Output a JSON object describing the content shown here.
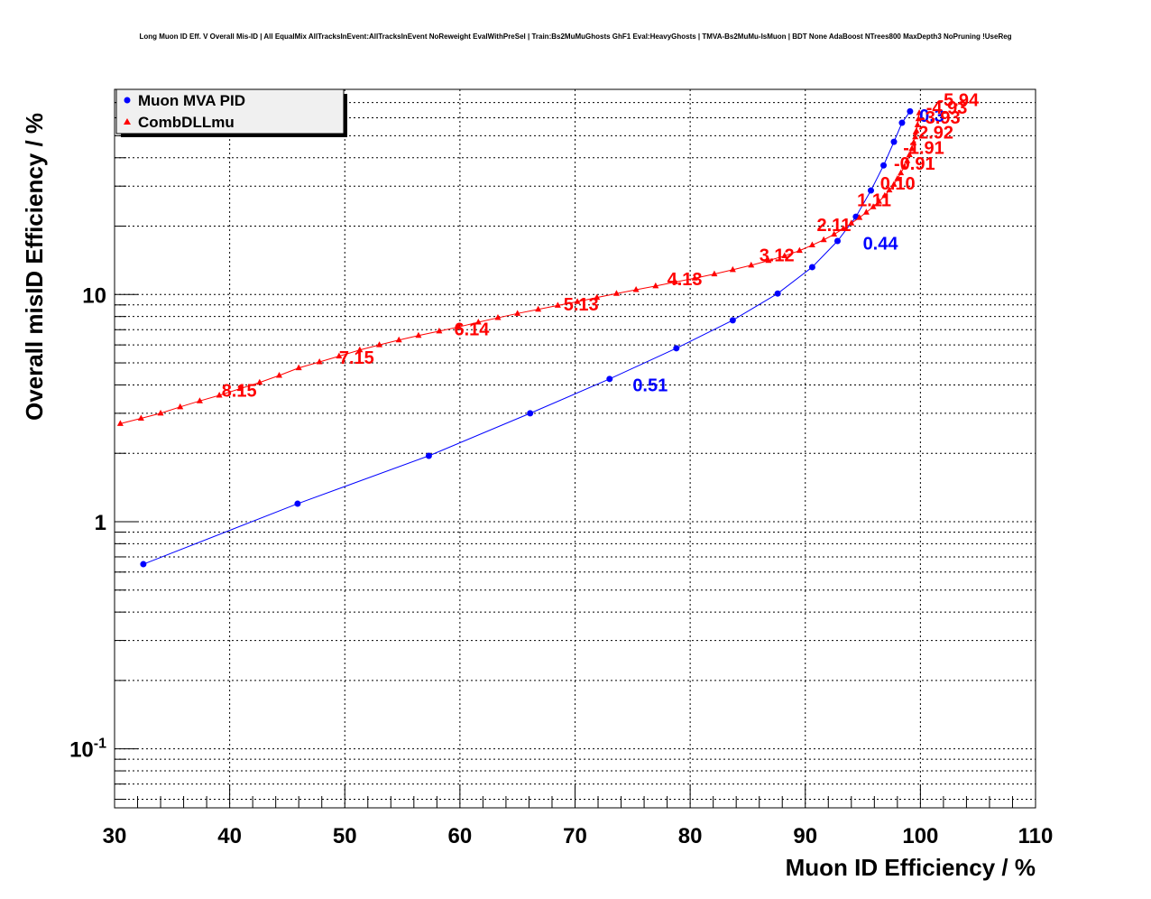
{
  "title": "Long Muon ID Eff. V Overall Mis-ID | All EqualMix AllTracksInEvent:AllTracksInEvent NoReweight EvalWithPreSel | Train:Bs2MuMuGhosts GhF1 Eval:HeavyGhosts | TMVA-Bs2MuMu-IsMuon | BDT None AdaBoost NTrees800 MaxDepth3 NoPruning !UseReg",
  "chart_data": {
    "type": "line",
    "xlabel": "Muon ID Efficiency / %",
    "ylabel": "Overall misID Efficiency / %",
    "xlim": [
      30,
      110
    ],
    "ylim": [
      0.055,
      80
    ],
    "yscale": "log",
    "grid": true,
    "legend_position": "top-left",
    "x_ticks": [
      "30",
      "40",
      "50",
      "60",
      "70",
      "80",
      "90",
      "100",
      "110"
    ],
    "y_ticks": [
      {
        "value": 0.1,
        "base": "10",
        "exp": "-1"
      },
      {
        "value": 1,
        "base": "1",
        "exp": ""
      },
      {
        "value": 10,
        "base": "10",
        "exp": ""
      }
    ],
    "series": [
      {
        "name": "Muon MVA PID",
        "color": "#0000ff",
        "marker": "circle",
        "points": [
          [
            32.5,
            0.65
          ],
          [
            45.9,
            1.2
          ],
          [
            57.3,
            1.95
          ],
          [
            66.1,
            3.0
          ],
          [
            73.0,
            4.25
          ],
          [
            78.8,
            5.8
          ],
          [
            83.7,
            7.7
          ],
          [
            87.6,
            10.1
          ],
          [
            90.6,
            13.2
          ],
          [
            92.8,
            17.2
          ],
          [
            94.4,
            22.0
          ],
          [
            95.7,
            28.7
          ],
          [
            96.8,
            37.0
          ],
          [
            97.7,
            47.0
          ],
          [
            98.4,
            57.0
          ],
          [
            99.1,
            64.0
          ]
        ],
        "cut_labels": [
          {
            "text": "0.51",
            "x": 75.0,
            "y": 3.75
          },
          {
            "text": "0.44",
            "x": 95.0,
            "y": 15.8
          },
          {
            "text": "0.3",
            "x": 99.9,
            "y": 57.5
          }
        ]
      },
      {
        "name": "CombDLLmu",
        "color": "#ff0000",
        "marker": "triangle",
        "points": [
          [
            30.5,
            2.7
          ],
          [
            32.3,
            2.85
          ],
          [
            34.0,
            3.0
          ],
          [
            35.7,
            3.2
          ],
          [
            37.4,
            3.4
          ],
          [
            39.1,
            3.6
          ],
          [
            40.9,
            3.85
          ],
          [
            42.6,
            4.1
          ],
          [
            44.3,
            4.4
          ],
          [
            46.0,
            4.75
          ],
          [
            47.8,
            5.05
          ],
          [
            49.5,
            5.35
          ],
          [
            51.3,
            5.7
          ],
          [
            53.0,
            6.0
          ],
          [
            54.7,
            6.3
          ],
          [
            56.4,
            6.6
          ],
          [
            58.2,
            6.9
          ],
          [
            59.9,
            7.2
          ],
          [
            61.6,
            7.55
          ],
          [
            63.3,
            7.9
          ],
          [
            65.0,
            8.25
          ],
          [
            66.8,
            8.6
          ],
          [
            68.5,
            8.95
          ],
          [
            70.2,
            9.3
          ],
          [
            71.9,
            9.7
          ],
          [
            73.6,
            10.1
          ],
          [
            75.3,
            10.5
          ],
          [
            77.0,
            10.9
          ],
          [
            78.7,
            11.35
          ],
          [
            80.4,
            11.8
          ],
          [
            82.1,
            12.3
          ],
          [
            83.7,
            12.85
          ],
          [
            85.3,
            13.45
          ],
          [
            86.8,
            14.1
          ],
          [
            88.2,
            14.8
          ],
          [
            89.5,
            15.6
          ],
          [
            90.6,
            16.5
          ],
          [
            91.6,
            17.4
          ],
          [
            92.5,
            18.4
          ],
          [
            93.3,
            19.5
          ],
          [
            94.0,
            20.6
          ],
          [
            94.7,
            21.8
          ],
          [
            95.3,
            23.0
          ],
          [
            95.9,
            24.3
          ],
          [
            96.4,
            25.7
          ],
          [
            96.9,
            27.2
          ],
          [
            97.3,
            28.8
          ],
          [
            97.7,
            30.5
          ],
          [
            98.0,
            32.3
          ],
          [
            98.3,
            34.3
          ],
          [
            98.6,
            36.5
          ],
          [
            98.85,
            38.8
          ],
          [
            99.05,
            41.2
          ],
          [
            99.25,
            43.8
          ],
          [
            99.4,
            46.5
          ],
          [
            99.55,
            49.4
          ],
          [
            99.65,
            52.5
          ],
          [
            99.75,
            55.8
          ],
          [
            99.83,
            59.3
          ],
          [
            99.9,
            63.0
          ]
        ],
        "cut_labels": [
          {
            "text": "8.15",
            "x": 39.3,
            "y": 3.55
          },
          {
            "text": "7.15",
            "x": 49.5,
            "y": 4.95
          },
          {
            "text": "6.14",
            "x": 59.5,
            "y": 6.6
          },
          {
            "text": "5.13",
            "x": 69.0,
            "y": 8.5
          },
          {
            "text": "4.13",
            "x": 78.0,
            "y": 11.0
          },
          {
            "text": "3.12",
            "x": 86.0,
            "y": 14.0
          },
          {
            "text": "2.11",
            "x": 91.0,
            "y": 19.0
          },
          {
            "text": "1.11",
            "x": 94.5,
            "y": 24.5
          },
          {
            "text": "0.10",
            "x": 96.5,
            "y": 29.0
          },
          {
            "text": "-0.91",
            "x": 97.7,
            "y": 35.5
          },
          {
            "text": "-1.91",
            "x": 98.5,
            "y": 41.5
          },
          {
            "text": "-2.92",
            "x": 99.3,
            "y": 48.5
          },
          {
            "text": "-3.93",
            "x": 99.9,
            "y": 56.5
          },
          {
            "text": "-4.93",
            "x": 100.5,
            "y": 62.5
          },
          {
            "text": "-5.94",
            "x": 101.5,
            "y": 67.5
          }
        ]
      }
    ]
  }
}
